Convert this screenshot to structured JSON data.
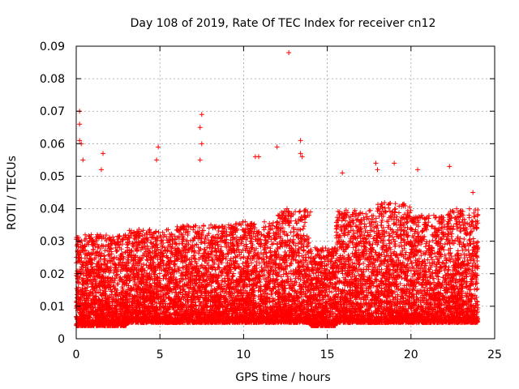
{
  "chart_data": {
    "type": "scatter",
    "title": "Day 108 of 2019, Rate Of TEC Index for receiver cn12",
    "xlabel": "GPS time / hours",
    "ylabel": "ROTI / TECUs",
    "xlim": [
      0,
      25
    ],
    "ylim": [
      0,
      0.09
    ],
    "xticks": [
      0,
      5,
      10,
      15,
      20,
      25
    ],
    "xtick_labels": [
      "0",
      "5",
      "10",
      "15",
      "20",
      "25"
    ],
    "yticks": [
      0,
      0.01,
      0.02,
      0.03,
      0.04,
      0.05,
      0.06,
      0.07,
      0.08,
      0.09
    ],
    "ytick_labels": [
      "0",
      "0.01",
      "0.02",
      "0.03",
      "0.04",
      "0.05",
      "0.06",
      "0.07",
      "0.08",
      "0.09"
    ],
    "grid": true,
    "marker": "+",
    "color": "#ff0000",
    "series": [
      {
        "name": "ROTI",
        "notable_points": [
          {
            "x": 0.2,
            "y": 0.07
          },
          {
            "x": 0.2,
            "y": 0.066
          },
          {
            "x": 0.2,
            "y": 0.061
          },
          {
            "x": 0.3,
            "y": 0.06
          },
          {
            "x": 0.4,
            "y": 0.055
          },
          {
            "x": 1.6,
            "y": 0.057
          },
          {
            "x": 1.5,
            "y": 0.052
          },
          {
            "x": 4.9,
            "y": 0.059
          },
          {
            "x": 4.8,
            "y": 0.055
          },
          {
            "x": 7.5,
            "y": 0.069
          },
          {
            "x": 7.4,
            "y": 0.065
          },
          {
            "x": 7.5,
            "y": 0.06
          },
          {
            "x": 7.4,
            "y": 0.055
          },
          {
            "x": 10.7,
            "y": 0.056
          },
          {
            "x": 10.9,
            "y": 0.056
          },
          {
            "x": 12.0,
            "y": 0.059
          },
          {
            "x": 12.7,
            "y": 0.088
          },
          {
            "x": 13.4,
            "y": 0.061
          },
          {
            "x": 13.4,
            "y": 0.057
          },
          {
            "x": 13.5,
            "y": 0.056
          },
          {
            "x": 15.9,
            "y": 0.051
          },
          {
            "x": 17.9,
            "y": 0.054
          },
          {
            "x": 18.0,
            "y": 0.052
          },
          {
            "x": 19.0,
            "y": 0.054
          },
          {
            "x": 20.4,
            "y": 0.052
          },
          {
            "x": 22.3,
            "y": 0.053
          },
          {
            "x": 23.7,
            "y": 0.045
          }
        ],
        "bulk": [
          {
            "x_range": [
              0,
              3
            ],
            "y_range": [
              0.004,
              0.032
            ]
          },
          {
            "x_range": [
              3,
              6
            ],
            "y_range": [
              0.005,
              0.034
            ]
          },
          {
            "x_range": [
              6,
              9
            ],
            "y_range": [
              0.005,
              0.035
            ]
          },
          {
            "x_range": [
              9,
              12
            ],
            "y_range": [
              0.005,
              0.036
            ]
          },
          {
            "x_range": [
              12,
              14
            ],
            "y_range": [
              0.005,
              0.04
            ]
          },
          {
            "x_range": [
              14,
              15.5
            ],
            "y_range": [
              0.004,
              0.028
            ]
          },
          {
            "x_range": [
              15.5,
              18
            ],
            "y_range": [
              0.005,
              0.04
            ]
          },
          {
            "x_range": [
              18,
              20
            ],
            "y_range": [
              0.005,
              0.042
            ]
          },
          {
            "x_range": [
              20,
              22
            ],
            "y_range": [
              0.005,
              0.038
            ]
          },
          {
            "x_range": [
              22,
              24
            ],
            "y_range": [
              0.005,
              0.04
            ]
          }
        ]
      }
    ]
  }
}
